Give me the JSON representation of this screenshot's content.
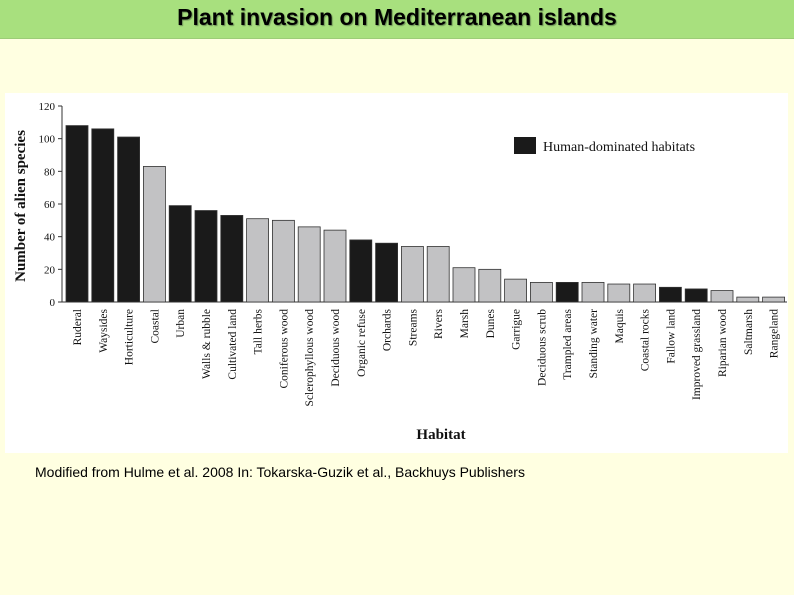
{
  "page": {
    "title": "Plant invasion on Mediterranean islands",
    "caption": "Modified from Hulme et al. 2008 In: Tokarska-Guzik et al., Backhuys Publishers"
  },
  "chart_data": {
    "type": "bar",
    "title": "",
    "xlabel": "Habitat",
    "ylabel": "Number of alien species",
    "ylim": [
      0,
      120
    ],
    "yticks": [
      0,
      20,
      40,
      60,
      80,
      100,
      120
    ],
    "grid": false,
    "legend": {
      "placement": "top-right",
      "entries": [
        {
          "label": "Human-dominated habitats",
          "color": "#1a1a1a"
        }
      ]
    },
    "colors": {
      "human": "#1a1a1a",
      "other": "#c2c2c4"
    },
    "categories": [
      "Ruderal",
      "Waysides",
      "Horticulture",
      "Coastal",
      "Urban",
      "Walls & rubble",
      "Cultivated land",
      "Tall herbs",
      "Coniferous wood",
      "Sclerophyllous wood",
      "Deciduous wood",
      "Organic refuse",
      "Orchards",
      "Streams",
      "Rivers",
      "Marsh",
      "Dunes",
      "Garrigue",
      "Deciduous scrub",
      "Trampled areas",
      "Standing water",
      "Maquis",
      "Coastal rocks",
      "Fallow land",
      "Improved grassland",
      "Riparian wood",
      "Saltmarsh",
      "Rangeland"
    ],
    "values": [
      108,
      106,
      101,
      83,
      59,
      56,
      53,
      51,
      50,
      46,
      44,
      38,
      36,
      34,
      34,
      21,
      20,
      14,
      12,
      12,
      12,
      11,
      11,
      9,
      8,
      7,
      3,
      3
    ],
    "human_dominated": [
      true,
      true,
      true,
      false,
      true,
      true,
      true,
      false,
      false,
      false,
      false,
      true,
      true,
      false,
      false,
      false,
      false,
      false,
      false,
      true,
      false,
      false,
      false,
      true,
      true,
      false,
      false,
      false
    ]
  }
}
